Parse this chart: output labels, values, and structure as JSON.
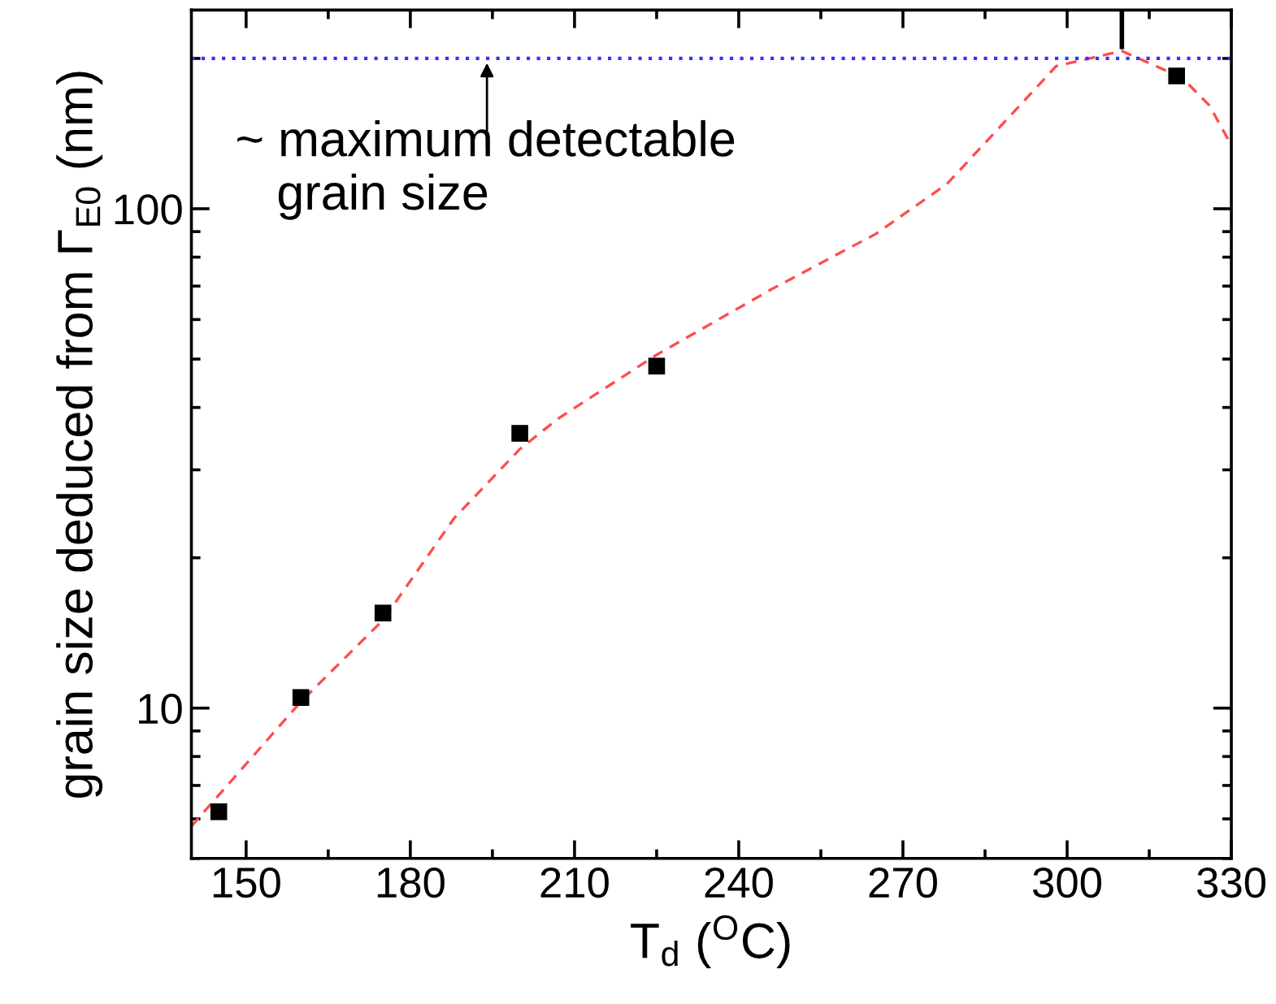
{
  "chart_data": {
    "type": "scatter",
    "xlabel": "T$_{d}$ ($^{O}$C)",
    "ylabel": "grain size deduced from Γ$_{E0}$ (nm)",
    "log": "y",
    "xlim": [
      140,
      330
    ],
    "xticks": [
      150,
      180,
      210,
      240,
      270,
      300,
      330
    ],
    "ylim": [
      5,
      250
    ],
    "yticks": [
      10,
      100
    ],
    "grid": false,
    "marker": "square",
    "series": [
      {
        "color": "#000000",
        "x": [
          145,
          160,
          175,
          200,
          225,
          320
        ],
        "values": [
          6.2,
          10.5,
          15.5,
          35.5,
          48.4,
          184.5
        ]
      },
      {
        "type": "line",
        "color": "#ff4d4d",
        "line_style": "dashed",
        "marker": "none",
        "x": [
          140,
          160,
          175,
          188,
          200,
          207,
          225,
          246,
          265,
          278,
          289,
          298,
          310,
          321,
          326,
          330
        ],
        "values": [
          5.8,
          10.3,
          15,
          24,
          33,
          38,
          51,
          69,
          89,
          112,
          151,
          193,
          207,
          183,
          161,
          134
        ]
      },
      {
        "type": "line",
        "color": "#000000",
        "line_style": "solid",
        "marker": "none",
        "x": [
          310,
          310
        ],
        "values": [
          211,
          250
        ]
      }
    ],
    "ref_lines": [
      {
        "axis": "y",
        "value": 200,
        "color": "#3333ff",
        "line_style": "dotted"
      }
    ],
    "annotations": [
      {
        "text": "~ maximum detectable\n   grain size",
        "x": 194,
        "y": 200
      }
    ]
  }
}
